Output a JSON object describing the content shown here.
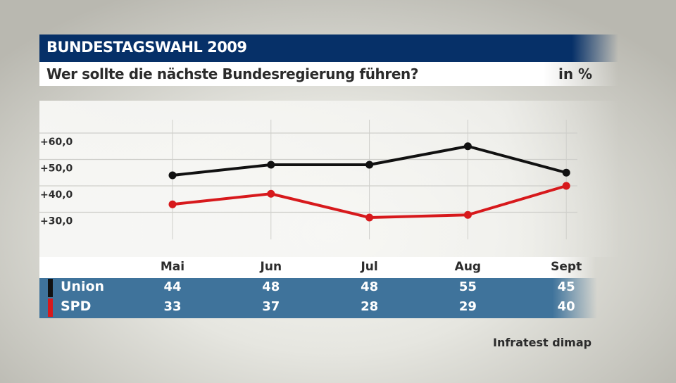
{
  "header": {
    "title": "BUNDESTAGSWAHL 2009"
  },
  "subtitle": {
    "question": "Wer sollte die nächste Bundesregierung führen?",
    "unit": "in %"
  },
  "source": "Infratest dimap",
  "colors": {
    "header_bg": "#063068",
    "table_bg": "#3f739b",
    "union": "#111111",
    "spd": "#d7191c"
  },
  "chart_data": {
    "type": "line",
    "categories": [
      "Mai",
      "Jun",
      "Jul",
      "Aug",
      "Sept"
    ],
    "y_ticks": [
      "+30,0",
      "+40,0",
      "+50,0",
      "+60,0"
    ],
    "y_tick_values": [
      30,
      40,
      50,
      60
    ],
    "ylim": [
      20,
      66
    ],
    "grid": true,
    "series": [
      {
        "name": "Union",
        "color": "#111111",
        "values": [
          44,
          48,
          48,
          55,
          45
        ],
        "labels": [
          "44",
          "48",
          "48",
          "55",
          "45"
        ]
      },
      {
        "name": "SPD",
        "color": "#d7191c",
        "values": [
          33,
          37,
          28,
          29,
          40
        ],
        "labels": [
          "33",
          "37",
          "28",
          "29",
          "40"
        ]
      }
    ]
  }
}
